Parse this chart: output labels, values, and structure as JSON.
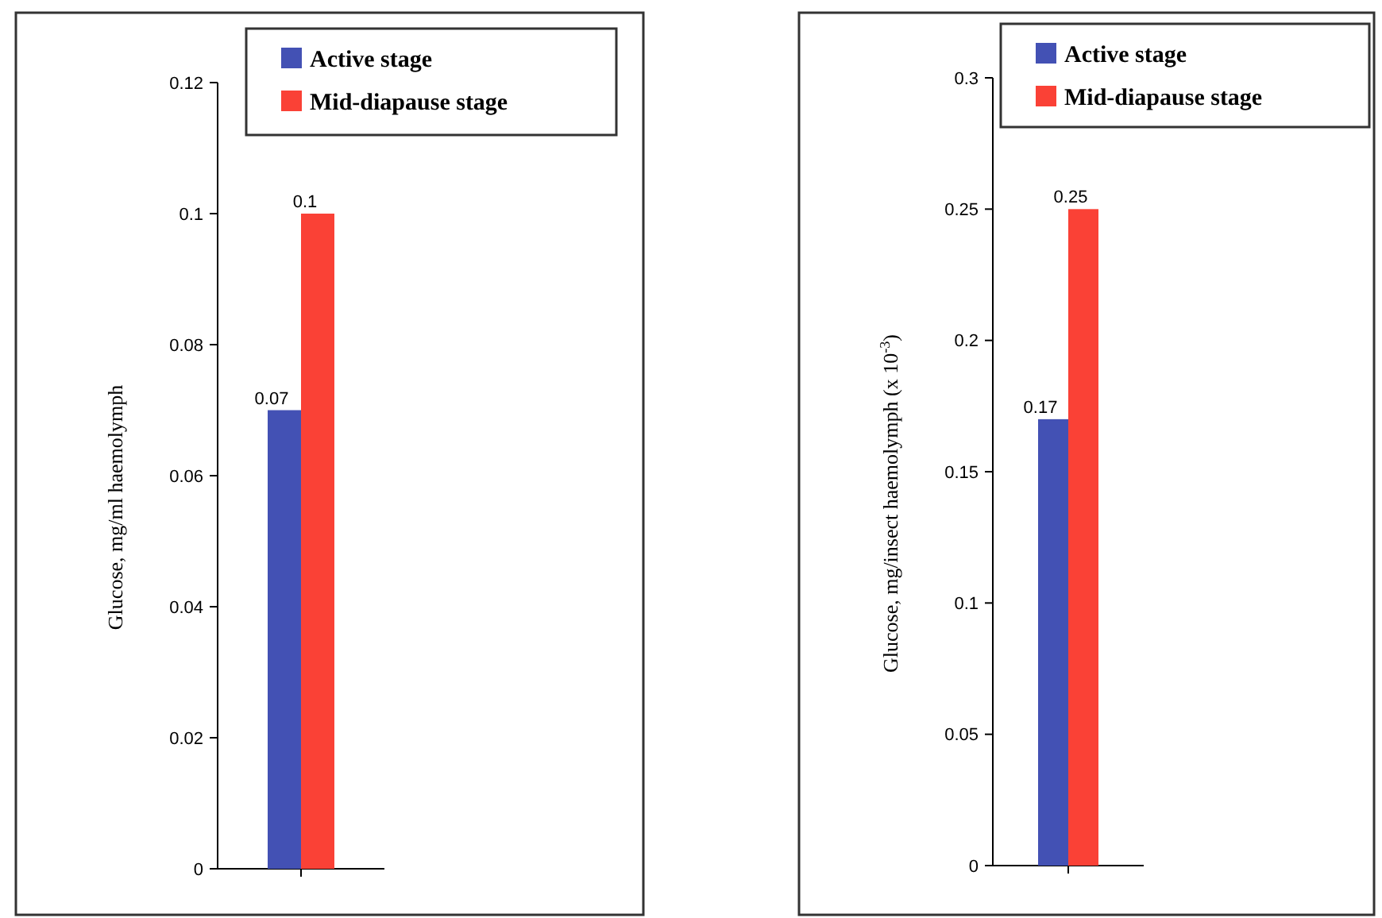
{
  "chart_data": [
    {
      "type": "bar",
      "categories": [
        null
      ],
      "ylabel": "Glucose, mg/ml haemolymph",
      "ylim": [
        0,
        0.12
      ],
      "yticks": [
        0,
        0.02,
        0.04,
        0.06,
        0.08,
        0.1,
        0.12
      ],
      "legend": "top right",
      "data_labels": true,
      "series": [
        {
          "name": "Active stage",
          "color": "#4351b4",
          "values": [
            0.07
          ]
        },
        {
          "name": "Mid-diapause stage",
          "color": "#fa4136",
          "values": [
            0.1
          ]
        }
      ]
    },
    {
      "type": "bar",
      "categories": [
        null
      ],
      "ylabel": "Glucose, mg/insect haemolymph (x 10$^{-3}$)",
      "ylim": [
        0,
        0.3
      ],
      "yticks": [
        0,
        0.05,
        0.1,
        0.15,
        0.2,
        0.25,
        0.3
      ],
      "legend": "top right",
      "data_labels": true,
      "series": [
        {
          "name": "Active stage",
          "color": "#4351b4",
          "values": [
            0.17
          ]
        },
        {
          "name": "Mid-diapause stage",
          "color": "#fa4136",
          "values": [
            0.25
          ]
        }
      ]
    }
  ]
}
